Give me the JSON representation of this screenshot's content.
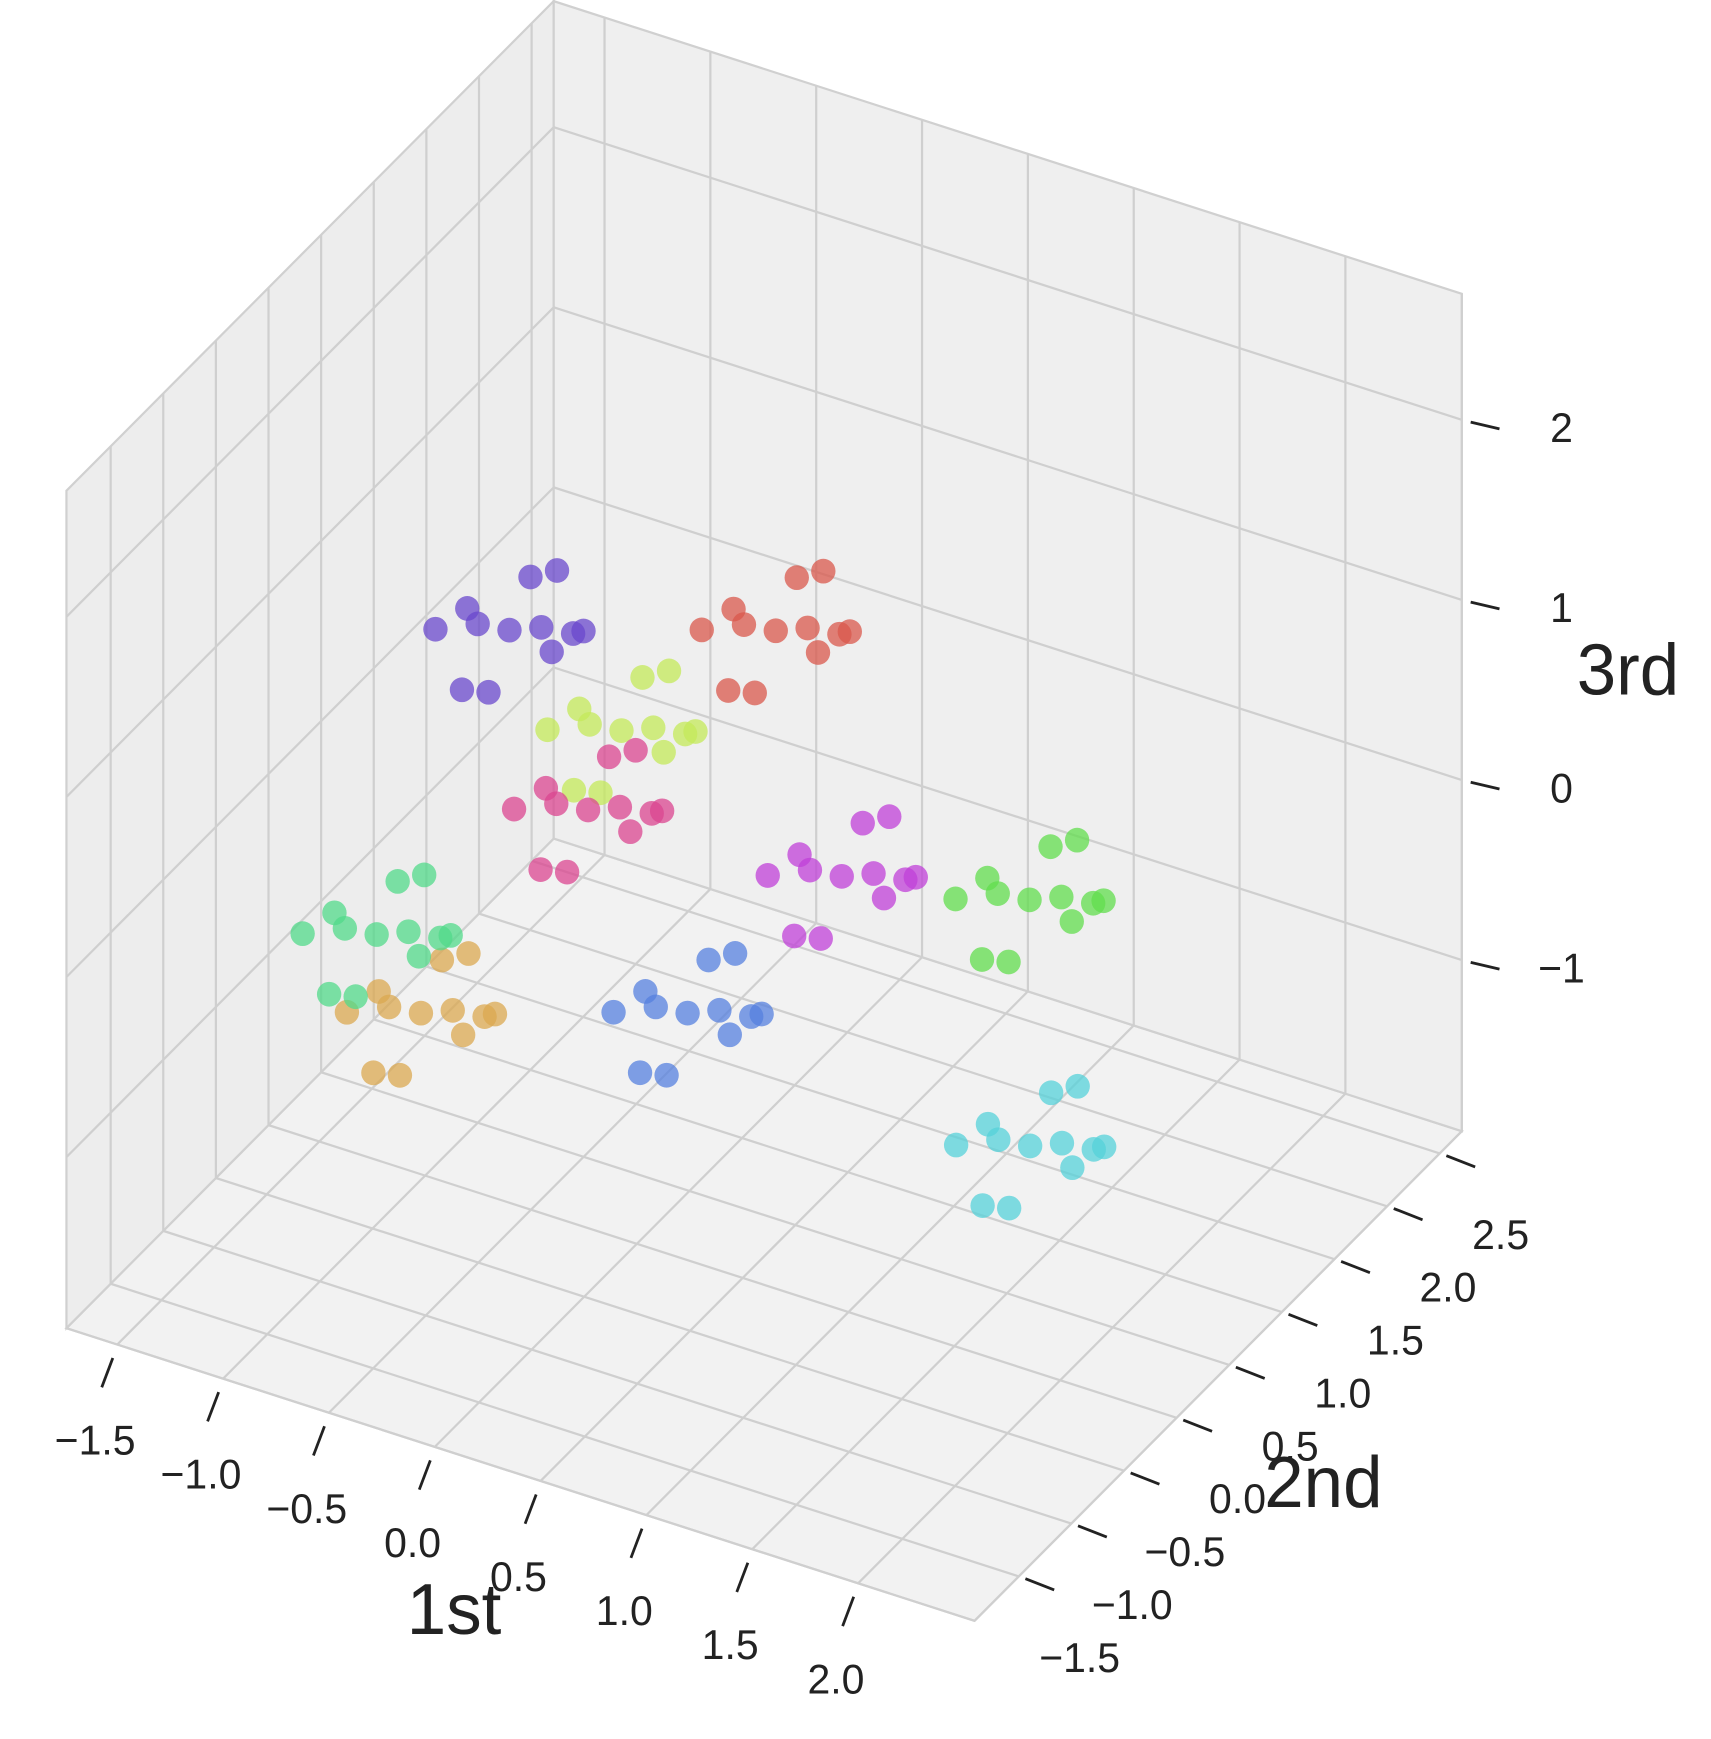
{
  "chart_data": {
    "type": "scatter3d",
    "x_label": "1st",
    "y_label": "2nd",
    "z_label": "3rd",
    "xlim": [
      -1.74,
      2.55
    ],
    "ylim": [
      -1.92,
      2.71
    ],
    "zlim": [
      -1.95,
      2.7
    ],
    "xticks": [
      {
        "value": -1.5,
        "label": "−1.5"
      },
      {
        "value": -1.0,
        "label": "−1.0"
      },
      {
        "value": -0.5,
        "label": "−0.5"
      },
      {
        "value": 0,
        "label": "0.0"
      },
      0.5,
      {
        "value": 1.0,
        "label": "1.0"
      },
      1.5,
      {
        "value": 2.0,
        "label": "2.0"
      }
    ],
    "yticks": [
      {
        "value": -1.5,
        "label": "−1.5"
      },
      {
        "value": -1.0,
        "label": "−1.0"
      },
      {
        "value": -0.5,
        "label": "−0.5"
      },
      {
        "value": 0,
        "label": "0.0"
      },
      0.5,
      {
        "value": 1.0,
        "label": "1.0"
      },
      1.5,
      {
        "value": 2.0,
        "label": "2.0"
      },
      2.5
    ],
    "zticks": [
      {
        "value": -1,
        "label": "−1"
      },
      0,
      1,
      2
    ],
    "grid": true,
    "series": [
      {
        "color": "#6a48cc",
        "x": [
          -0.89,
          -0.69,
          -1.09,
          -0.79,
          -0.99,
          -0.59,
          -1.19,
          -0.84,
          -0.94,
          -0.74,
          -1.04,
          -0.49
        ],
        "y": [
          0.58,
          0.48,
          0.68,
          0.78,
          0.38,
          0.68,
          0.48,
          0.28,
          0.88,
          0.73,
          0.43,
          0.38
        ],
        "z": [
          0.78,
          0.93,
          0.68,
          0.58,
          0.98,
          0.83,
          0.73,
          0.63,
          0.88,
          1.08,
          0.48,
          1.03
        ]
      },
      {
        "color": "#c4ea5a",
        "x": [
          -0.51,
          -0.31,
          -0.71,
          -0.41,
          -0.61,
          -0.21,
          -0.81,
          -0.46,
          -0.56,
          -0.36,
          -0.66,
          -0.11
        ],
        "y": [
          0.88,
          0.78,
          0.98,
          1.08,
          0.68,
          0.98,
          0.78,
          0.58,
          1.18,
          1.03,
          0.73,
          0.68
        ],
        "z": [
          0.19,
          0.34,
          0.09,
          -0.01,
          0.39,
          0.24,
          0.14,
          0.04,
          0.29,
          0.49,
          -0.11,
          0.44
        ]
      },
      {
        "color": "#d9584c",
        "x": [
          0.02,
          0.22,
          -0.18,
          0.12,
          -0.08,
          0.32,
          -0.28,
          0.07,
          -0.03,
          0.17,
          -0.13,
          0.42
        ],
        "y": [
          1.28,
          1.18,
          1.38,
          1.48,
          1.08,
          1.38,
          1.18,
          0.98,
          1.58,
          1.43,
          1.13,
          1.08
        ],
        "z": [
          0.71,
          0.86,
          0.61,
          0.51,
          0.91,
          0.76,
          0.66,
          0.56,
          0.81,
          1.01,
          0.41,
          0.96
        ]
      },
      {
        "color": "#dba850",
        "x": [
          -1.01,
          -0.81,
          -1.21,
          -0.91,
          -1.11,
          -0.71,
          -1.31,
          -0.96,
          -1.06,
          -0.86,
          -1.16,
          -0.61
        ],
        "y": [
          -0.02,
          -0.12,
          0.08,
          0.18,
          -0.22,
          0.08,
          -0.12,
          -0.32,
          0.28,
          0.13,
          -0.17,
          -0.22
        ],
        "z": [
          -1.04,
          -0.89,
          -1.14,
          -1.24,
          -0.84,
          -0.99,
          -1.09,
          -1.19,
          -0.94,
          -0.74,
          -1.34,
          -0.79
        ]
      },
      {
        "color": "#52da8a",
        "x": [
          -1.07,
          -0.87,
          -1.27,
          -0.97,
          -1.17,
          -0.77,
          -1.37,
          -1.02,
          -1.12,
          -0.92,
          -1.22,
          -0.67
        ],
        "y": [
          -0.32,
          -0.42,
          -0.22,
          -0.12,
          -0.52,
          -0.22,
          -0.42,
          -0.62,
          -0.02,
          -0.17,
          -0.47,
          -0.52
        ],
        "z": [
          -0.45,
          -0.3,
          -0.55,
          -0.65,
          -0.25,
          -0.4,
          -0.5,
          -0.6,
          -0.35,
          -0.15,
          -0.75,
          -0.2
        ]
      },
      {
        "color": "#db4590",
        "x": [
          -0.27,
          -0.07,
          -0.47,
          -0.17,
          -0.37,
          0.03,
          -0.57,
          -0.22,
          -0.32,
          -0.12,
          -0.42,
          0.13
        ],
        "y": [
          0.08,
          -0.02,
          0.18,
          0.28,
          -0.12,
          0.18,
          -0.02,
          -0.22,
          0.38,
          0.23,
          -0.07,
          -0.12
        ],
        "z": [
          0.31,
          0.46,
          0.21,
          0.11,
          0.51,
          0.36,
          0.26,
          0.16,
          0.41,
          0.61,
          0.01,
          0.56
        ]
      },
      {
        "color": "#c040d8",
        "x": [
          0.63,
          0.83,
          0.43,
          0.73,
          0.53,
          0.93,
          0.33,
          0.68,
          0.58,
          0.78,
          0.48,
          1.03
        ],
        "y": [
          0.68,
          0.58,
          0.78,
          0.88,
          0.48,
          0.78,
          0.58,
          0.38,
          0.98,
          0.83,
          0.53,
          0.48
        ],
        "z": [
          -0.07,
          0.08,
          -0.17,
          -0.27,
          0.13,
          -0.02,
          -0.12,
          -0.22,
          0.03,
          0.23,
          -0.37,
          0.18
        ]
      },
      {
        "color": "#62de4e",
        "x": [
          1.02,
          1.22,
          0.82,
          1.12,
          0.92,
          1.32,
          0.72,
          1.07,
          0.97,
          1.17,
          0.87,
          1.42
        ],
        "y": [
          1.68,
          1.58,
          1.78,
          1.88,
          1.48,
          1.78,
          1.58,
          1.38,
          1.98,
          1.83,
          1.53,
          1.48
        ],
        "z": [
          -0.64,
          -0.49,
          -0.74,
          -0.84,
          -0.44,
          -0.59,
          -0.69,
          -0.79,
          -0.54,
          -0.34,
          -0.94,
          -0.39
        ]
      },
      {
        "color": "#56d1da",
        "x": [
          1.52,
          1.72,
          1.32,
          1.62,
          1.42,
          1.82,
          1.22,
          1.57,
          1.47,
          1.67,
          1.37,
          1.92
        ],
        "y": [
          0.68,
          0.58,
          0.78,
          0.88,
          0.48,
          0.78,
          0.58,
          0.38,
          0.98,
          0.83,
          0.53,
          0.48
        ],
        "z": [
          -1.23,
          -1.08,
          -1.33,
          -1.43,
          -1.03,
          -1.18,
          -1.28,
          -1.38,
          -1.13,
          -0.93,
          -1.53,
          -0.98
        ]
      },
      {
        "color": "#5580df",
        "x": [
          0.2,
          0.4,
          0,
          0.3,
          0.1,
          0.5,
          -0.1,
          0.25,
          0.15,
          0.35,
          0.05,
          0.6
        ],
        "y": [
          0.08,
          -0.02,
          0.18,
          0.28,
          -0.12,
          0.18,
          -0.02,
          -0.22,
          0.38,
          0.23,
          -0.07,
          -0.12
        ],
        "z": [
          -0.64,
          -0.49,
          -0.74,
          -0.84,
          -0.44,
          -0.59,
          -0.69,
          -0.79,
          -0.54,
          -0.34,
          -0.94,
          -0.39
        ]
      }
    ]
  }
}
